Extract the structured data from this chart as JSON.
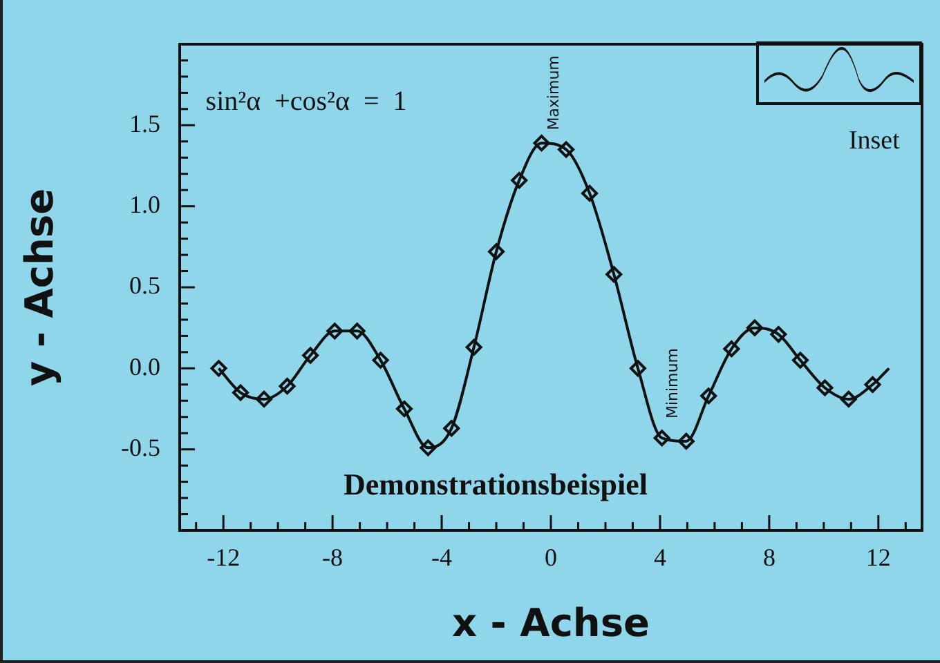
{
  "chart_data": {
    "type": "line",
    "title": "Demonstrationsbeispiel",
    "xlabel": "x - Achse",
    "ylabel": "y - Achse",
    "annotations": [
      "sin²α  +cos²α  =  1",
      "Maximum",
      "Minimum",
      "Inset"
    ],
    "xlim": [
      -13.6,
      13.6
    ],
    "ylim": [
      -1.0,
      2.0
    ],
    "xticks": [
      {
        "value": -13,
        "label": null
      },
      -12,
      {
        "value": -11,
        "label": null
      },
      {
        "value": -10,
        "label": null
      },
      {
        "value": -9,
        "label": null
      },
      -8,
      {
        "value": -7,
        "label": null
      },
      {
        "value": -6,
        "label": null
      },
      {
        "value": -5,
        "label": null
      },
      -4,
      {
        "value": -3,
        "label": null
      },
      {
        "value": -2,
        "label": null
      },
      {
        "value": -1,
        "label": null
      },
      0,
      {
        "value": 1,
        "label": null
      },
      {
        "value": 2,
        "label": null
      },
      {
        "value": 3,
        "label": null
      },
      4,
      {
        "value": 5,
        "label": null
      },
      {
        "value": 6,
        "label": null
      },
      {
        "value": 7,
        "label": null
      },
      8,
      {
        "value": 9,
        "label": null
      },
      {
        "value": 10,
        "label": null
      },
      {
        "value": 11,
        "label": null
      },
      12,
      {
        "value": 13,
        "label": null
      }
    ],
    "yticks": [
      {
        "value": -1.0,
        "label": null
      },
      {
        "value": -0.9,
        "label": null
      },
      {
        "value": -0.8,
        "label": null
      },
      {
        "value": -0.7,
        "label": null
      },
      {
        "value": -0.6,
        "label": null
      },
      -0.5,
      {
        "value": -0.4,
        "label": null
      },
      {
        "value": -0.3,
        "label": null
      },
      {
        "value": -0.2,
        "label": null
      },
      {
        "value": -0.1,
        "label": null
      },
      {
        "value": 0,
        "label": "0.0"
      },
      {
        "value": 0.1,
        "label": null
      },
      {
        "value": 0.2,
        "label": null
      },
      {
        "value": 0.3,
        "label": null
      },
      {
        "value": 0.4,
        "label": null
      },
      0.5,
      {
        "value": 0.6,
        "label": null
      },
      {
        "value": 0.7,
        "label": null
      },
      {
        "value": 0.8,
        "label": null
      },
      {
        "value": 0.9,
        "label": null
      },
      {
        "value": 1.0,
        "label": "1.0"
      },
      {
        "value": 1.1,
        "label": null
      },
      {
        "value": 1.2,
        "label": null
      },
      {
        "value": 1.3,
        "label": null
      },
      {
        "value": 1.4,
        "label": null
      },
      1.5,
      {
        "value": 1.6,
        "label": null
      },
      {
        "value": 1.7,
        "label": null
      },
      {
        "value": 1.8,
        "label": null
      },
      {
        "value": 1.9,
        "label": null
      }
    ],
    "grid": false,
    "legend": false,
    "line_style": "solid",
    "series": [
      {
        "marker": "none",
        "color": "#111111",
        "x": [
          -12.17,
          -11.37,
          -10.51,
          -9.66,
          -8.81,
          -7.92,
          -7.1,
          -6.24,
          -5.37,
          -4.5,
          -3.64,
          -2.82,
          -2.0,
          -1.16,
          -0.34,
          0.56,
          1.42,
          2.31,
          3.19,
          4.07,
          4.96,
          5.78,
          6.62,
          7.47,
          8.34,
          9.14,
          10.04,
          10.91,
          11.79,
          12.39
        ],
        "values": [
          0.0,
          -0.15,
          -0.19,
          -0.11,
          0.08,
          0.23,
          0.23,
          0.05,
          -0.25,
          -0.49,
          -0.37,
          0.13,
          0.72,
          1.16,
          1.39,
          1.35,
          1.08,
          0.58,
          0.0,
          -0.43,
          -0.45,
          -0.17,
          0.12,
          0.25,
          0.21,
          0.05,
          -0.12,
          -0.19,
          -0.1,
          0.0
        ]
      },
      {
        "type": "scatter",
        "marker": "diamond",
        "color": "#111111",
        "x": [
          -12.17,
          -11.37,
          -10.51,
          -9.66,
          -8.81,
          -7.92,
          -7.1,
          -6.24,
          -5.37,
          -4.5,
          -3.64,
          -2.82,
          -2.0,
          -1.16,
          -0.34,
          0.56,
          1.42,
          2.31,
          3.19,
          4.07,
          4.96,
          5.78,
          6.62,
          7.47,
          8.34,
          9.14,
          10.04,
          10.91,
          11.79
        ],
        "values": [
          0.0,
          -0.15,
          -0.19,
          -0.11,
          0.08,
          0.23,
          0.23,
          0.05,
          -0.25,
          -0.49,
          -0.37,
          0.13,
          0.72,
          1.16,
          1.39,
          1.35,
          1.08,
          0.58,
          0.0,
          -0.43,
          -0.45,
          -0.17,
          0.12,
          0.25,
          0.21,
          0.05,
          -0.12,
          -0.19,
          -0.1
        ]
      }
    ]
  }
}
